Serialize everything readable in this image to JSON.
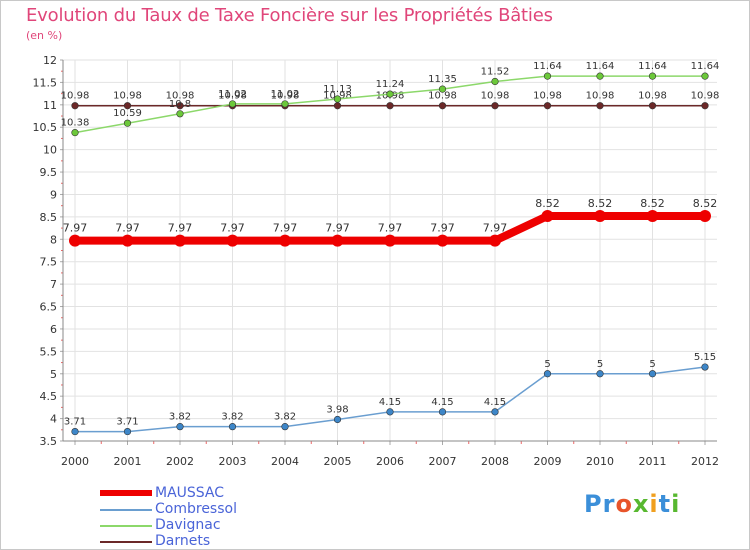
{
  "header": {
    "title": "Evolution du Taux de Taxe Foncière sur les Propriétés Bâties",
    "unit": "(en %)"
  },
  "logo": {
    "parts": [
      "Pr",
      "o",
      "x",
      "i",
      "t",
      "i"
    ],
    "colors": [
      "#3b8fd9",
      "#e8542a",
      "#58b830",
      "#f0a020",
      "#3b8fd9",
      "#58b830"
    ]
  },
  "chart_data": {
    "type": "line",
    "title": "Evolution du Taux de Taxe Foncière sur les Propriétés Bâties",
    "ylabel": "(en %)",
    "xlabel": "",
    "ylim": [
      3.5,
      12
    ],
    "yticks": [
      "3.5",
      "4",
      "4.5",
      "5",
      "5.5",
      "6",
      "6.5",
      "7",
      "7.5",
      "8",
      "8.5",
      "9",
      "9.5",
      "10",
      "10.5",
      "11",
      "11.5",
      "12"
    ],
    "categories": [
      "2000",
      "2001",
      "2002",
      "2003",
      "2004",
      "2005",
      "2006",
      "2007",
      "2008",
      "2009",
      "2010",
      "2011",
      "2012"
    ],
    "grid": true,
    "legend_position": "bottom-left",
    "series": [
      {
        "name": "Darnets",
        "color": "#6b2828",
        "marker": "#6b2828",
        "values": [
          10.98,
          10.98,
          10.98,
          10.98,
          10.98,
          10.98,
          10.98,
          10.98,
          10.98,
          10.98,
          10.98,
          10.98,
          10.98
        ],
        "labels": [
          "10.98",
          "10.98",
          "10.98",
          "10.98",
          "10.98",
          "10.98",
          "10.98",
          "10.98",
          "10.98",
          "10.98",
          "10.98",
          "10.98",
          "10.98"
        ]
      },
      {
        "name": "Davignac",
        "color": "#8cd86a",
        "marker": "#6cc83a",
        "values": [
          10.38,
          10.59,
          10.8,
          11.02,
          11.02,
          11.13,
          11.24,
          11.35,
          11.52,
          11.64,
          11.64,
          11.64,
          11.64
        ],
        "labels": [
          "10.38",
          "10.59",
          "10.8",
          "11.02",
          "11.02",
          "11.13",
          "11.24",
          "11.35",
          "11.52",
          "11.64",
          "11.64",
          "11.64",
          "11.64"
        ]
      },
      {
        "name": "Combressol",
        "color": "#6a9ed0",
        "marker": "#3d86c8",
        "values": [
          3.71,
          3.71,
          3.82,
          3.82,
          3.82,
          3.98,
          4.15,
          4.15,
          4.15,
          5,
          5,
          5,
          5.15
        ],
        "labels": [
          "3.71",
          "3.71",
          "3.82",
          "3.82",
          "3.82",
          "3.98",
          "4.15",
          "4.15",
          "4.15",
          "5",
          "5",
          "5",
          "5.15"
        ]
      },
      {
        "name": "MAUSSAC",
        "color": "#ee0000",
        "marker": "#ee0000",
        "values": [
          7.97,
          7.97,
          7.97,
          7.97,
          7.97,
          7.97,
          7.97,
          7.97,
          7.97,
          8.52,
          8.52,
          8.52,
          8.52
        ],
        "labels": [
          "7.97",
          "7.97",
          "7.97",
          "7.97",
          "7.97",
          "7.97",
          "7.97",
          "7.97",
          "7.97",
          "8.52",
          "8.52",
          "8.52",
          "8.52"
        ]
      }
    ],
    "legend": [
      "MAUSSAC",
      "Combressol",
      "Davignac",
      "Darnets"
    ]
  }
}
